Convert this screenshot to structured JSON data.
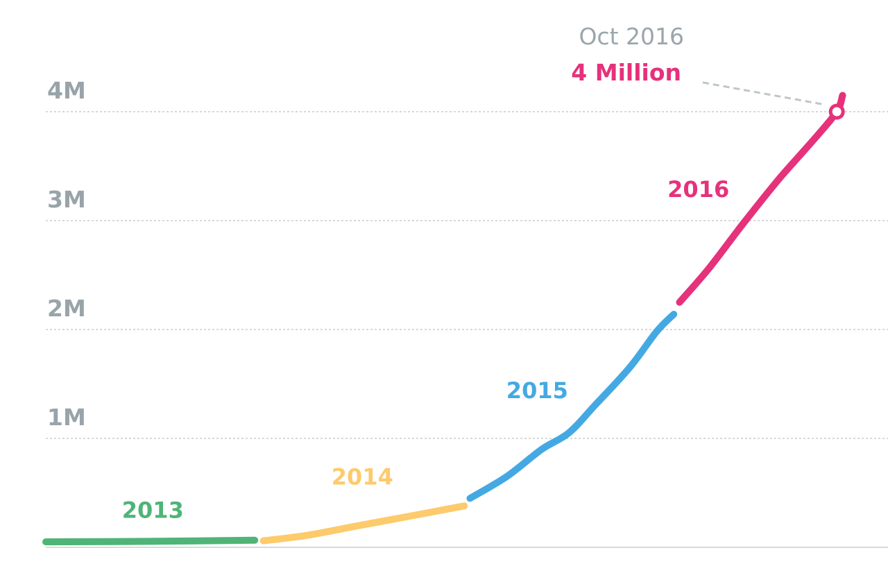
{
  "chart_data": {
    "type": "line",
    "title": "",
    "xlabel": "",
    "ylabel": "",
    "ylim": [
      0,
      4000000
    ],
    "xlim": [
      "2013-01-01",
      "2016-11-15"
    ],
    "yticks": [
      {
        "value": 1000000,
        "label": "1M"
      },
      {
        "value": 2000000,
        "label": "2M"
      },
      {
        "value": 3000000,
        "label": "3M"
      },
      {
        "value": 4000000,
        "label": "4M"
      }
    ],
    "grid": true,
    "legend": "none",
    "series": [
      {
        "name": "2013",
        "color": "#4FB477",
        "points": [
          {
            "x": "2013-01-01",
            "y": 50000
          },
          {
            "x": "2013-07-01",
            "y": 55000
          },
          {
            "x": "2013-12-31",
            "y": 65000
          }
        ]
      },
      {
        "name": "2014",
        "color": "#FDCA6C",
        "points": [
          {
            "x": "2014-01-15",
            "y": 60000
          },
          {
            "x": "2014-04-01",
            "y": 110000
          },
          {
            "x": "2014-07-01",
            "y": 200000
          },
          {
            "x": "2014-10-01",
            "y": 290000
          },
          {
            "x": "2014-12-31",
            "y": 380000
          }
        ]
      },
      {
        "name": "2015",
        "color": "#44A9E3",
        "points": [
          {
            "x": "2015-01-10",
            "y": 450000
          },
          {
            "x": "2015-03-15",
            "y": 650000
          },
          {
            "x": "2015-05-15",
            "y": 900000
          },
          {
            "x": "2015-07-01",
            "y": 1050000
          },
          {
            "x": "2015-08-15",
            "y": 1300000
          },
          {
            "x": "2015-10-15",
            "y": 1650000
          },
          {
            "x": "2015-12-01",
            "y": 1980000
          },
          {
            "x": "2015-12-31",
            "y": 2140000
          }
        ]
      },
      {
        "name": "2016",
        "color": "#E6317B",
        "points": [
          {
            "x": "2016-01-10",
            "y": 2250000
          },
          {
            "x": "2016-03-01",
            "y": 2560000
          },
          {
            "x": "2016-05-01",
            "y": 2980000
          },
          {
            "x": "2016-07-01",
            "y": 3380000
          },
          {
            "x": "2016-09-01",
            "y": 3750000
          },
          {
            "x": "2016-10-10",
            "y": 4000000
          },
          {
            "x": "2016-10-20",
            "y": 4150000
          }
        ]
      }
    ],
    "annotation": {
      "date_label": "Oct 2016",
      "value_label": "4 Million",
      "x": "2016-10-10",
      "y": 4000000,
      "color": "#E6317B",
      "date_color": "#9AA6AB"
    },
    "colors": {
      "tick_label": "#98A4A9",
      "grid": "#C5CDD0",
      "axis": "#D5DADC",
      "connector": "#BFC6CA"
    }
  }
}
